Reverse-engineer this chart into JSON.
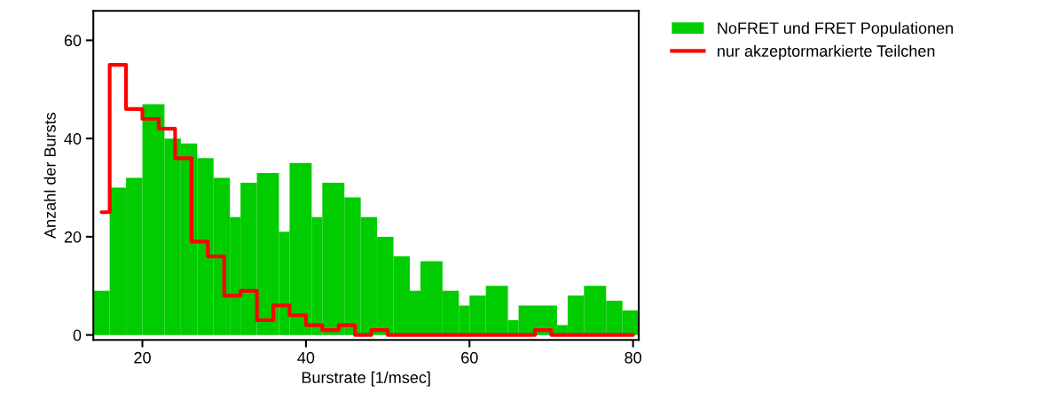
{
  "chart_data": {
    "type": "histogram",
    "xlabel": "Burstrate [1/msec]",
    "ylabel": "Anzahl der Bursts",
    "xlim": [
      14,
      80.7
    ],
    "ylim": [
      -1,
      66
    ],
    "xticks": [
      20,
      40,
      60,
      80
    ],
    "yticks": [
      0,
      20,
      40,
      60
    ],
    "grid": false,
    "legend": "top right",
    "series": [
      {
        "name": "NoFRET und FRET Populationen",
        "color": "#00cc00",
        "bins": [
          14,
          16,
          18,
          20,
          22.7,
          24.7,
          26.7,
          28.7,
          30.7,
          32,
          34,
          36.7,
          38,
          40.7,
          42,
          44.7,
          46.7,
          48.7,
          50.7,
          52.7,
          54,
          56.7,
          58.7,
          60,
          62,
          64.7,
          66,
          70.7,
          72,
          74,
          76.7,
          78.7,
          80.7
        ],
        "values": [
          9,
          30,
          32,
          47,
          40,
          39,
          36,
          32,
          24,
          31,
          33,
          21,
          35,
          24,
          31,
          28,
          24,
          20,
          16,
          9,
          15,
          9,
          6,
          8,
          10,
          3,
          6,
          2,
          8,
          10,
          7,
          5
        ]
      },
      {
        "name": "nur akzeptormarkierte Teilchen",
        "type": "step",
        "color": "#ff0000",
        "x": [
          15,
          16,
          18,
          20,
          22,
          24,
          26,
          28,
          30,
          32,
          34,
          36,
          38,
          40,
          42,
          44,
          46,
          48,
          50,
          52,
          54,
          56,
          58,
          60,
          62,
          64,
          66,
          68,
          70,
          72,
          74,
          76,
          78,
          80
        ],
        "values": [
          25,
          55,
          46,
          44,
          42,
          36,
          19,
          16,
          8,
          9,
          3,
          6,
          4,
          2,
          1,
          2,
          0,
          1,
          0,
          0,
          0,
          0,
          0,
          0,
          0,
          0,
          0,
          1,
          0,
          0,
          0,
          0,
          0,
          0
        ]
      }
    ]
  }
}
